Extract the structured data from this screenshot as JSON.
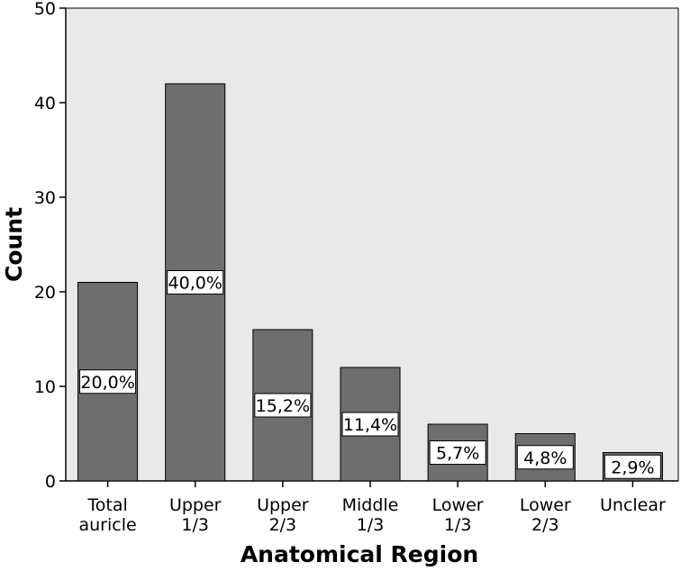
{
  "chart_data": {
    "type": "bar",
    "categories": [
      [
        "Total",
        "auricle"
      ],
      [
        "Upper",
        "1/3"
      ],
      [
        "Upper",
        "2/3"
      ],
      [
        "Middle",
        "1/3"
      ],
      [
        "Lower",
        "1/3"
      ],
      [
        "Lower",
        "2/3"
      ],
      [
        "Unclear"
      ]
    ],
    "values": [
      21,
      42,
      16,
      12,
      6,
      5,
      3
    ],
    "data_labels": [
      "20,0%",
      "40,0%",
      "15,2%",
      "11,4%",
      "5,7%",
      "4,8%",
      "2,9%"
    ],
    "xlabel": "Anatomical Region",
    "ylabel": "Count",
    "ylim": [
      0,
      50
    ],
    "yticks": [
      0,
      10,
      20,
      30,
      40,
      50
    ],
    "colors": {
      "plot_background": "#e9e9e9",
      "bar_fill": "#6e6e6e",
      "bar_stroke": "#000000",
      "label_box": "#ffffff"
    },
    "grid": false,
    "legend": "none"
  }
}
